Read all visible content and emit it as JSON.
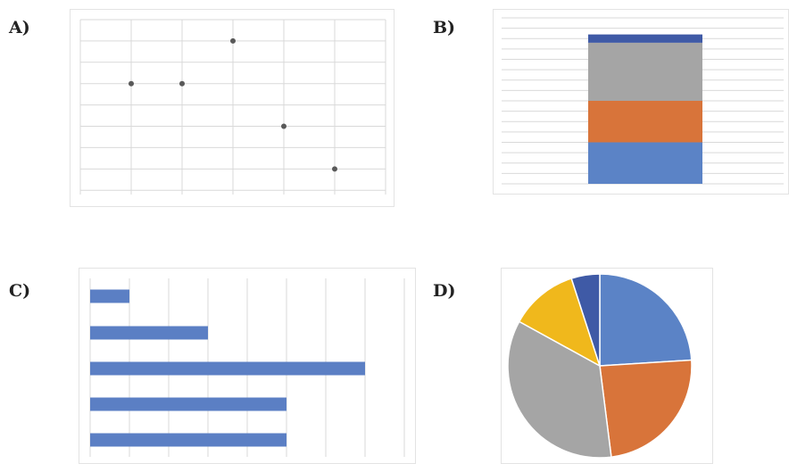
{
  "panels": [
    {
      "label": "A)"
    },
    {
      "label": "B)"
    },
    {
      "label": "C)"
    },
    {
      "label": "D)"
    }
  ],
  "chart_data": [
    {
      "type": "scatter",
      "panel": "A",
      "x": [
        1,
        2,
        3,
        4,
        5
      ],
      "y": [
        5,
        5,
        7,
        3,
        1
      ],
      "xlim": [
        0,
        6
      ],
      "ylim": [
        -0.2,
        8
      ],
      "grid": true,
      "color": "#595959"
    },
    {
      "type": "bar",
      "panel": "B",
      "stacked": true,
      "categories": [
        ""
      ],
      "series": [
        {
          "values": [
            2
          ],
          "color": "#5b83c6"
        },
        {
          "values": [
            2
          ],
          "color": "#d8743a"
        },
        {
          "values": [
            2.8
          ],
          "color": "#a5a5a5"
        },
        {
          "values": [
            0.4
          ],
          "color": "#3f5aa6"
        }
      ],
      "ylim": [
        0,
        8
      ],
      "grid": true
    },
    {
      "type": "bar",
      "panel": "C",
      "orientation": "horizontal",
      "values": [
        1,
        3,
        7,
        5,
        5
      ],
      "xlim": [
        0,
        8
      ],
      "grid": true,
      "color": "#5b7fc4"
    },
    {
      "type": "pie",
      "panel": "D",
      "values": [
        24,
        24,
        35,
        12,
        5
      ],
      "colors": [
        "#5b83c6",
        "#d8743a",
        "#a5a5a5",
        "#f0b81c",
        "#3f5aa6"
      ],
      "start_angle_deg": 0,
      "direction": "clockwise"
    }
  ]
}
